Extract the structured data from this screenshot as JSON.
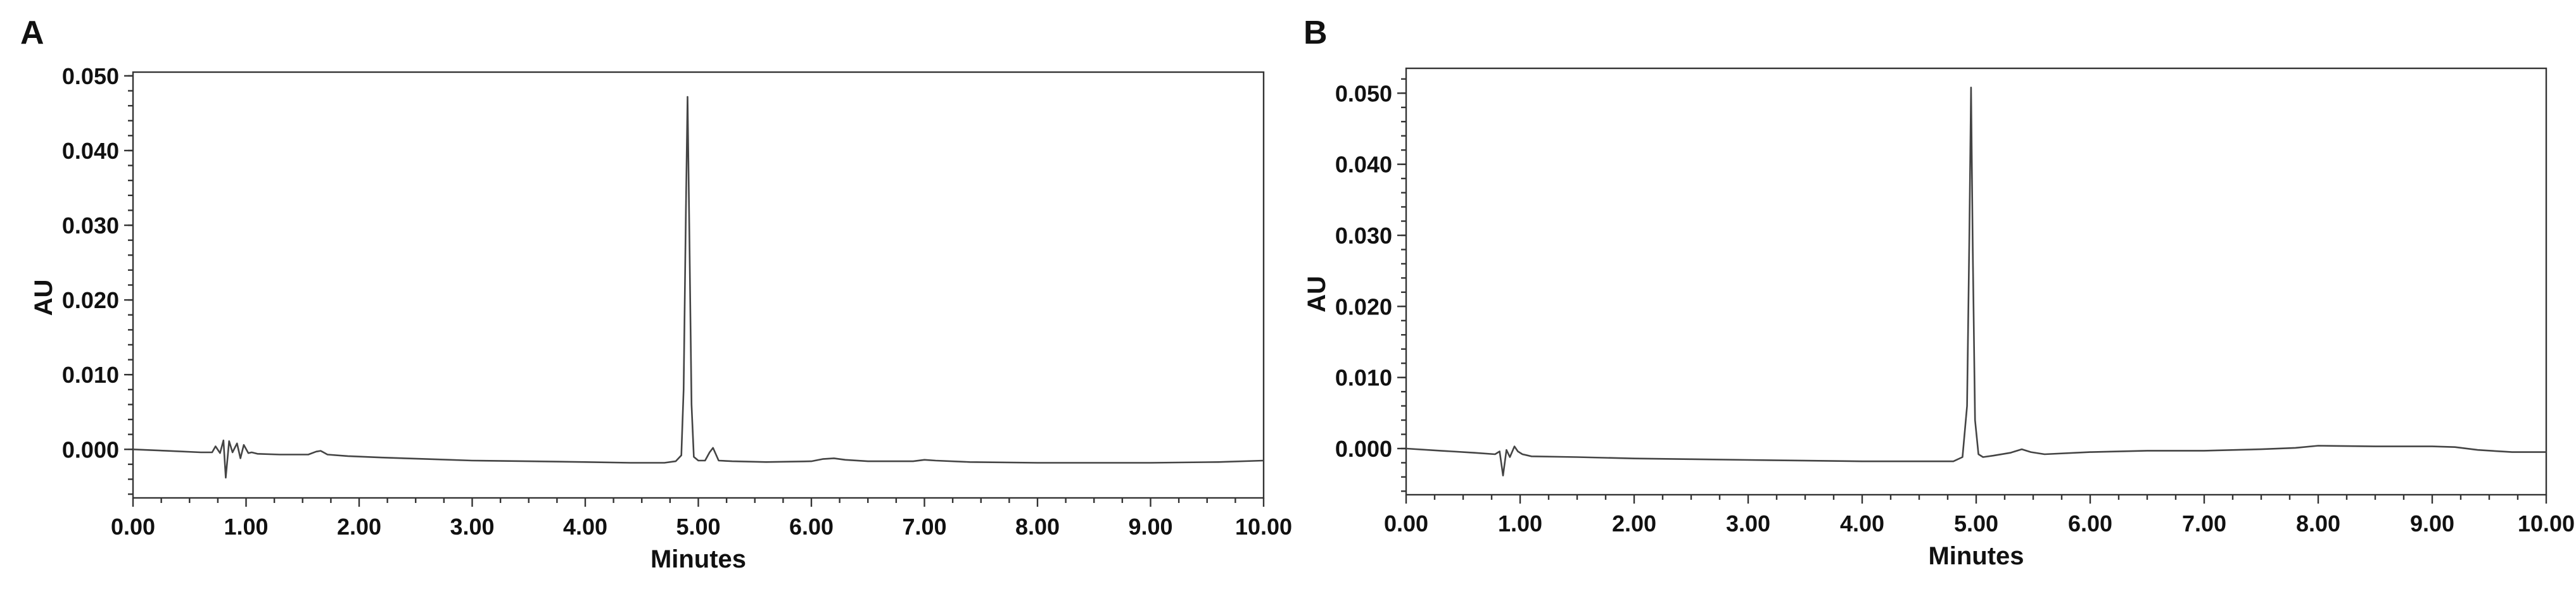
{
  "chart_data": [
    {
      "panel": "A",
      "type": "line",
      "xlabel": "Minutes",
      "ylabel": "AU",
      "xlim": [
        0,
        10
      ],
      "ylim": [
        -0.0065,
        0.0505
      ],
      "x_ticks": [
        "0.00",
        "1.00",
        "2.00",
        "3.00",
        "4.00",
        "5.00",
        "6.00",
        "7.00",
        "8.00",
        "9.00",
        "10.00"
      ],
      "y_ticks": [
        "0.000",
        "0.010",
        "0.020",
        "0.030",
        "0.040",
        "0.050"
      ],
      "grid": false,
      "legend": "none",
      "series": [
        {
          "x": [
            0.0,
            0.3,
            0.6,
            0.7,
            0.73,
            0.77,
            0.8,
            0.82,
            0.85,
            0.88,
            0.92,
            0.95,
            0.98,
            1.02,
            1.05,
            1.1,
            1.3,
            1.55,
            1.62,
            1.66,
            1.72,
            1.9,
            2.2,
            2.6,
            3.0,
            3.5,
            4.0,
            4.4,
            4.7,
            4.8,
            4.85,
            4.87,
            4.89,
            4.905,
            4.92,
            4.94,
            4.96,
            5.0,
            5.06,
            5.1,
            5.13,
            5.18,
            5.3,
            5.6,
            6.0,
            6.1,
            6.2,
            6.3,
            6.5,
            6.9,
            7.0,
            7.1,
            7.4,
            8.0,
            9.0,
            9.6,
            10.0
          ],
          "y": [
            0.0,
            -0.0002,
            -0.0004,
            -0.0004,
            0.0004,
            -0.0005,
            0.0012,
            -0.0038,
            0.0011,
            -0.0004,
            0.0008,
            -0.0012,
            0.0006,
            -0.0005,
            -0.0004,
            -0.0006,
            -0.0007,
            -0.0007,
            -0.0003,
            -0.0002,
            -0.0007,
            -0.0009,
            -0.0011,
            -0.0013,
            -0.0015,
            -0.0016,
            -0.0017,
            -0.0018,
            -0.0018,
            -0.0016,
            -0.0008,
            0.008,
            0.032,
            0.0472,
            0.03,
            0.006,
            -0.001,
            -0.0015,
            -0.0015,
            -0.0004,
            0.0002,
            -0.0015,
            -0.0016,
            -0.0017,
            -0.0016,
            -0.0013,
            -0.0012,
            -0.0014,
            -0.0016,
            -0.0016,
            -0.0014,
            -0.0015,
            -0.0017,
            -0.0018,
            -0.0018,
            -0.0017,
            -0.0015
          ]
        }
      ]
    },
    {
      "panel": "B",
      "type": "line",
      "xlabel": "Minutes",
      "ylabel": "AU",
      "xlim": [
        0,
        10
      ],
      "ylim": [
        -0.0065,
        0.0535
      ],
      "x_ticks": [
        "0.00",
        "1.00",
        "2.00",
        "3.00",
        "4.00",
        "5.00",
        "6.00",
        "7.00",
        "8.00",
        "9.00",
        "10.00"
      ],
      "y_ticks": [
        "0.000",
        "0.010",
        "0.020",
        "0.030",
        "0.040",
        "0.050"
      ],
      "grid": false,
      "legend": "none",
      "series": [
        {
          "x": [
            0.0,
            0.3,
            0.6,
            0.78,
            0.82,
            0.85,
            0.88,
            0.91,
            0.95,
            0.98,
            1.02,
            1.1,
            1.5,
            2.0,
            2.5,
            3.0,
            3.5,
            4.0,
            4.5,
            4.8,
            4.88,
            4.92,
            4.94,
            4.955,
            4.97,
            4.99,
            5.02,
            5.06,
            5.15,
            5.3,
            5.4,
            5.48,
            5.6,
            6.0,
            6.5,
            7.0,
            7.5,
            7.8,
            8.0,
            8.5,
            9.0,
            9.2,
            9.4,
            9.7,
            10.0
          ],
          "y": [
            0.0,
            -0.0003,
            -0.0006,
            -0.0008,
            -0.0004,
            -0.0038,
            -0.0002,
            -0.0012,
            0.0003,
            -0.0004,
            -0.0008,
            -0.0011,
            -0.0012,
            -0.0014,
            -0.0015,
            -0.0016,
            -0.0017,
            -0.0018,
            -0.0018,
            -0.0018,
            -0.0012,
            0.006,
            0.03,
            0.0508,
            0.028,
            0.004,
            -0.0008,
            -0.0012,
            -0.001,
            -0.0006,
            -0.0001,
            -0.0005,
            -0.0008,
            -0.0005,
            -0.0003,
            -0.0003,
            -0.0001,
            0.0001,
            0.0004,
            0.0003,
            0.0003,
            0.0002,
            -0.0002,
            -0.0005,
            -0.0005
          ]
        }
      ]
    }
  ],
  "panels": [
    {
      "label": "A"
    },
    {
      "label": "B"
    }
  ]
}
